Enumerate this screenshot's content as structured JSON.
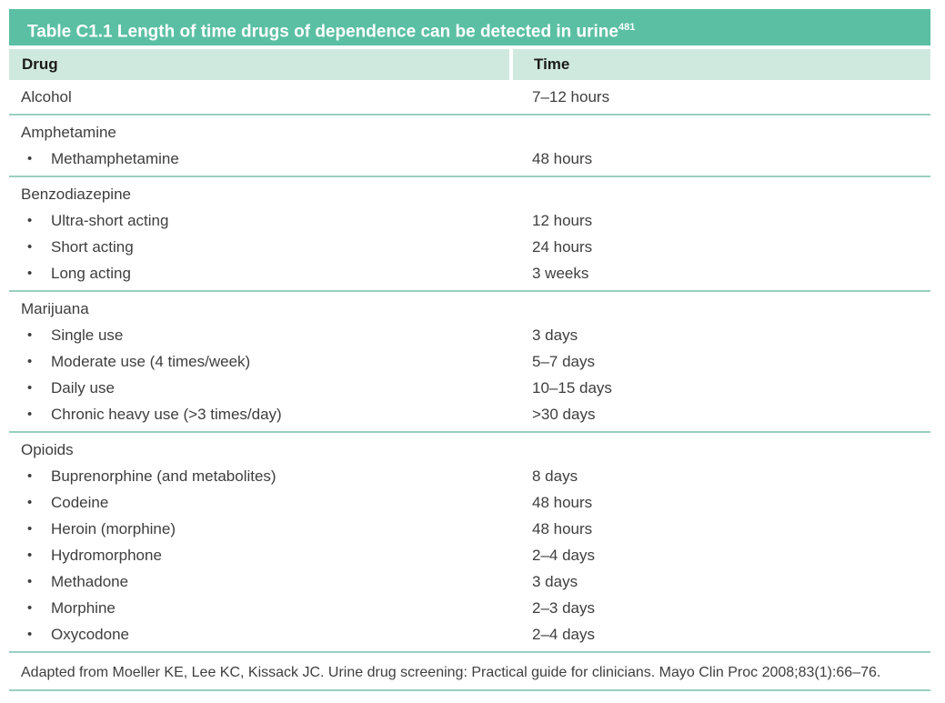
{
  "colors": {
    "accent": "#5ABFA3",
    "mint": "#CFE9DF",
    "sep": "#9ACFC1",
    "text": "#3E3E3E",
    "head_text": "#1B1B1B",
    "title_text": "#FFFFFF"
  },
  "table": {
    "title": "Table C1.1 Length of time drugs of dependence can be detected in urine",
    "title_ref": "481",
    "columns": {
      "drug": "Drug",
      "time": "Time"
    },
    "bullet": "•",
    "sections": [
      {
        "header": {
          "label": "Alcohol",
          "time": "7–12 hours"
        },
        "items": []
      },
      {
        "header": {
          "label": "Amphetamine",
          "time": ""
        },
        "items": [
          {
            "label": "Methamphetamine",
            "time": "48 hours"
          }
        ]
      },
      {
        "header": {
          "label": "Benzodiazepine",
          "time": ""
        },
        "items": [
          {
            "label": "Ultra-short acting",
            "time": "12 hours"
          },
          {
            "label": "Short acting",
            "time": "24 hours"
          },
          {
            "label": "Long acting",
            "time": "3 weeks"
          }
        ]
      },
      {
        "header": {
          "label": "Marijuana",
          "time": ""
        },
        "items": [
          {
            "label": "Single use",
            "time": "3 days"
          },
          {
            "label": "Moderate use (4 times/week)",
            "time": "5–7 days"
          },
          {
            "label": "Daily use",
            "time": "10–15 days"
          },
          {
            "label": "Chronic heavy use (>3 times/day)",
            "time": ">30 days"
          }
        ]
      },
      {
        "header": {
          "label": "Opioids",
          "time": ""
        },
        "items": [
          {
            "label": "Buprenorphine (and metabolites)",
            "time": "8 days"
          },
          {
            "label": "Codeine",
            "time": "48 hours"
          },
          {
            "label": "Heroin (morphine)",
            "time": "48 hours"
          },
          {
            "label": "Hydromorphone",
            "time": "2–4 days"
          },
          {
            "label": "Methadone",
            "time": "3 days"
          },
          {
            "label": "Morphine",
            "time": "2–3 days"
          },
          {
            "label": "Oxycodone",
            "time": "2–4 days"
          }
        ]
      }
    ],
    "footnote": "Adapted from Moeller KE, Lee KC, Kissack JC. Urine drug screening: Practical guide for clinicians. Mayo Clin Proc 2008;83(1):66–76."
  }
}
